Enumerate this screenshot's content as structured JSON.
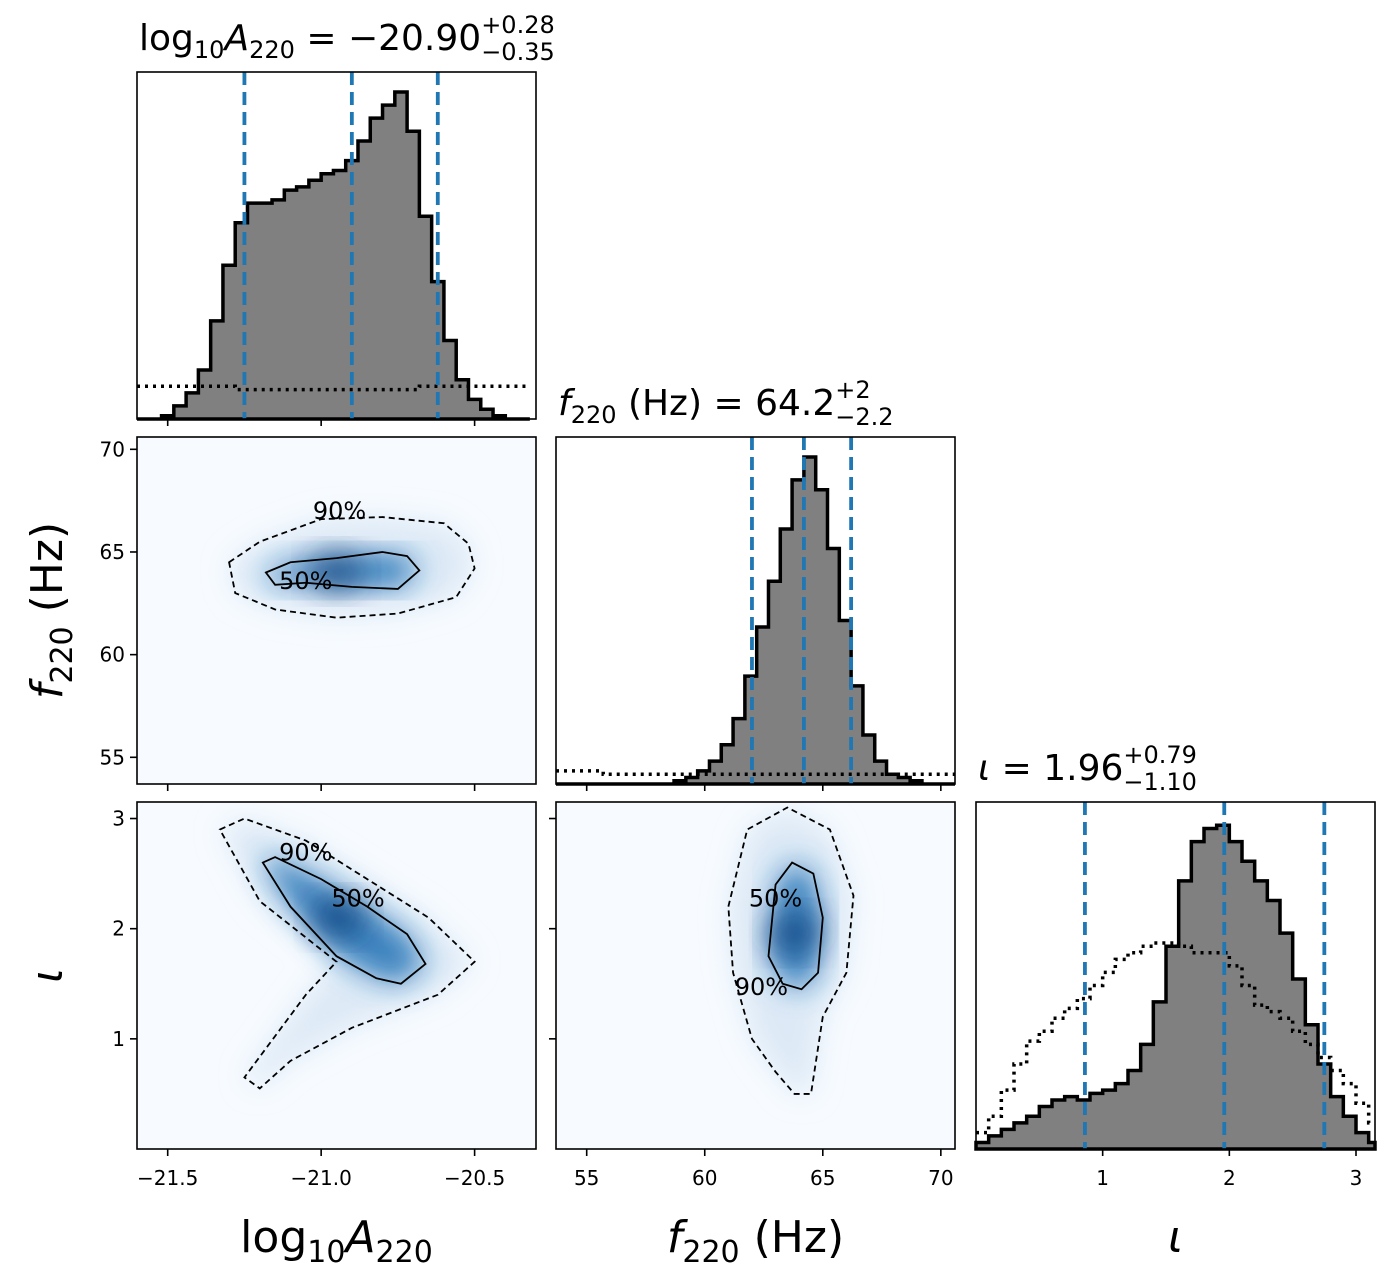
{
  "chart_data": {
    "type": "corner",
    "parameters": [
      {
        "key": "logA",
        "title_base": "log",
        "title_sub": "10",
        "title_symbol": "A",
        "title_symbol_sub": "220",
        "title_mid": " = ",
        "title_value": "−20.90",
        "title_plus": "+0.28",
        "title_minus": "−0.35",
        "label_base": "log",
        "label_sub": "10",
        "label_symbol": "A",
        "label_symbol_sub": "220",
        "range": [
          -21.6,
          -20.3
        ],
        "ticks": [
          -21.5,
          -21.0,
          -20.5
        ],
        "tick_labels": [
          "−21.5",
          "−21.0",
          "−20.5"
        ],
        "quantiles": [
          -21.25,
          -20.9,
          -20.62
        ],
        "hist_x": [
          -21.6,
          -21.56,
          -21.52,
          -21.48,
          -21.44,
          -21.4,
          -21.36,
          -21.32,
          -21.28,
          -21.24,
          -21.2,
          -21.16,
          -21.12,
          -21.08,
          -21.04,
          -21.0,
          -20.96,
          -20.92,
          -20.88,
          -20.84,
          -20.8,
          -20.76,
          -20.72,
          -20.68,
          -20.64,
          -20.6,
          -20.56,
          -20.52,
          -20.48,
          -20.44,
          -20.4,
          -20.36,
          -20.32
        ],
        "hist_y": [
          0.0,
          0.0,
          0.01,
          0.04,
          0.08,
          0.15,
          0.3,
          0.47,
          0.6,
          0.66,
          0.66,
          0.67,
          0.7,
          0.71,
          0.73,
          0.75,
          0.76,
          0.79,
          0.85,
          0.92,
          0.96,
          1.0,
          0.88,
          0.62,
          0.42,
          0.24,
          0.12,
          0.06,
          0.03,
          0.01,
          0.0,
          0.0
        ],
        "prior_y": [
          0.1,
          0.1,
          0.1,
          0.1,
          0.1,
          0.1,
          0.1,
          0.1,
          0.09,
          0.09,
          0.09,
          0.09,
          0.09,
          0.09,
          0.09,
          0.09,
          0.09,
          0.09,
          0.09,
          0.09,
          0.09,
          0.09,
          0.09,
          0.1,
          0.1,
          0.1,
          0.1,
          0.1,
          0.1,
          0.1,
          0.1,
          0.1
        ]
      },
      {
        "key": "f220",
        "title_symbol": "f",
        "title_symbol_sub": "220",
        "title_mid": " (Hz) = ",
        "title_value": "64.2",
        "title_plus": "+2",
        "title_minus": "−2.2",
        "label_symbol": "f",
        "label_symbol_sub": "220",
        "label_unit": " (Hz)",
        "range": [
          53.7,
          70.6
        ],
        "ticks": [
          55,
          60,
          65,
          70
        ],
        "tick_labels": [
          "55",
          "60",
          "65",
          "70"
        ],
        "quantiles": [
          62.0,
          64.2,
          66.2
        ],
        "hist_x": [
          53.7,
          54.2,
          54.7,
          55.2,
          55.7,
          56.2,
          56.7,
          57.2,
          57.7,
          58.2,
          58.7,
          59.2,
          59.7,
          60.2,
          60.7,
          61.2,
          61.7,
          62.2,
          62.7,
          63.2,
          63.7,
          64.2,
          64.7,
          65.2,
          65.7,
          66.2,
          66.7,
          67.2,
          67.7,
          68.2,
          68.7,
          69.2,
          69.7,
          70.2,
          70.6
        ],
        "hist_y": [
          0.0,
          0.0,
          0.0,
          0.0,
          0.0,
          0.0,
          0.0,
          0.0,
          0.0,
          0.0,
          0.01,
          0.02,
          0.04,
          0.07,
          0.12,
          0.2,
          0.33,
          0.48,
          0.62,
          0.78,
          0.93,
          1.0,
          0.9,
          0.72,
          0.5,
          0.3,
          0.15,
          0.07,
          0.03,
          0.02,
          0.01,
          0.0,
          0.0,
          0.0
        ],
        "prior_y": [
          0.04,
          0.04,
          0.04,
          0.04,
          0.03,
          0.03,
          0.03,
          0.03,
          0.03,
          0.03,
          0.03,
          0.03,
          0.03,
          0.03,
          0.03,
          0.03,
          0.03,
          0.03,
          0.03,
          0.03,
          0.03,
          0.03,
          0.03,
          0.03,
          0.03,
          0.03,
          0.03,
          0.03,
          0.03,
          0.03,
          0.03,
          0.03,
          0.03,
          0.03
        ]
      },
      {
        "key": "iota",
        "title_symbol": "ι",
        "title_mid": " = ",
        "title_value": "1.96",
        "title_plus": "+0.79",
        "title_minus": "−1.10",
        "label_symbol": "ι",
        "range": [
          0.0,
          3.15
        ],
        "ticks": [
          1,
          2,
          3
        ],
        "tick_labels": [
          "1",
          "2",
          "3"
        ],
        "quantiles": [
          0.86,
          1.96,
          2.75
        ],
        "hist_x": [
          0.0,
          0.1,
          0.2,
          0.3,
          0.4,
          0.5,
          0.6,
          0.7,
          0.8,
          0.9,
          1.0,
          1.1,
          1.2,
          1.3,
          1.4,
          1.5,
          1.6,
          1.7,
          1.8,
          1.9,
          2.0,
          2.1,
          2.2,
          2.3,
          2.4,
          2.5,
          2.6,
          2.7,
          2.8,
          2.9,
          3.0,
          3.1,
          3.15
        ],
        "hist_y": [
          0.02,
          0.04,
          0.06,
          0.08,
          0.1,
          0.13,
          0.15,
          0.16,
          0.15,
          0.17,
          0.18,
          0.2,
          0.24,
          0.32,
          0.45,
          0.62,
          0.82,
          0.94,
          0.98,
          0.99,
          0.94,
          0.88,
          0.82,
          0.76,
          0.66,
          0.52,
          0.38,
          0.26,
          0.16,
          0.1,
          0.05,
          0.02
        ],
        "prior_y": [
          0.05,
          0.1,
          0.18,
          0.26,
          0.33,
          0.36,
          0.4,
          0.43,
          0.46,
          0.5,
          0.54,
          0.58,
          0.6,
          0.62,
          0.63,
          0.63,
          0.62,
          0.6,
          0.6,
          0.6,
          0.56,
          0.5,
          0.44,
          0.42,
          0.4,
          0.36,
          0.32,
          0.28,
          0.24,
          0.2,
          0.14,
          0.08
        ]
      }
    ],
    "density_2d": [
      {
        "x": "logA",
        "y": "f220",
        "y_ticks": [
          55,
          60,
          65,
          70
        ],
        "y_tick_labels": [
          "55",
          "60",
          "65",
          "70"
        ],
        "contour_50": [
          [
            -21.18,
            64.0
          ],
          [
            -21.1,
            64.5
          ],
          [
            -20.95,
            64.7
          ],
          [
            -20.8,
            65.0
          ],
          [
            -20.72,
            64.8
          ],
          [
            -20.68,
            64.1
          ],
          [
            -20.75,
            63.2
          ],
          [
            -20.9,
            63.3
          ],
          [
            -21.05,
            63.5
          ],
          [
            -21.15,
            63.4
          ],
          [
            -21.18,
            64.0
          ]
        ],
        "contour_90": [
          [
            -21.3,
            64.5
          ],
          [
            -21.2,
            65.5
          ],
          [
            -21.0,
            66.6
          ],
          [
            -20.8,
            66.7
          ],
          [
            -20.6,
            66.4
          ],
          [
            -20.52,
            65.4
          ],
          [
            -20.5,
            64.2
          ],
          [
            -20.56,
            62.8
          ],
          [
            -20.75,
            62.0
          ],
          [
            -20.95,
            61.8
          ],
          [
            -21.15,
            62.2
          ],
          [
            -21.28,
            63.0
          ],
          [
            -21.3,
            64.5
          ]
        ],
        "label_90": "90%",
        "label_50": "50%",
        "label_90_pos": [
          -20.94,
          66.6
        ],
        "label_50_pos": [
          -21.05,
          63.2
        ]
      },
      {
        "x": "logA",
        "y": "iota",
        "y_ticks": [
          1,
          2,
          3
        ],
        "y_tick_labels": [
          "1",
          "2",
          "3"
        ],
        "contour_50": [
          [
            -21.19,
            2.6
          ],
          [
            -21.15,
            2.65
          ],
          [
            -21.0,
            2.45
          ],
          [
            -20.85,
            2.2
          ],
          [
            -20.72,
            1.95
          ],
          [
            -20.66,
            1.68
          ],
          [
            -20.74,
            1.5
          ],
          [
            -20.82,
            1.55
          ],
          [
            -20.95,
            1.75
          ],
          [
            -21.1,
            2.2
          ],
          [
            -21.19,
            2.6
          ]
        ],
        "contour_90": [
          [
            -21.33,
            2.9
          ],
          [
            -21.25,
            3.0
          ],
          [
            -21.05,
            2.8
          ],
          [
            -20.85,
            2.45
          ],
          [
            -20.65,
            2.1
          ],
          [
            -20.5,
            1.7
          ],
          [
            -20.62,
            1.4
          ],
          [
            -20.9,
            1.1
          ],
          [
            -21.1,
            0.8
          ],
          [
            -21.2,
            0.55
          ],
          [
            -21.25,
            0.65
          ],
          [
            -21.05,
            1.4
          ],
          [
            -20.95,
            1.7
          ],
          [
            -21.2,
            2.25
          ],
          [
            -21.33,
            2.9
          ]
        ],
        "label_90": "90%",
        "label_50": "50%",
        "label_90_pos": [
          -21.05,
          2.62
        ],
        "label_50_pos": [
          -20.88,
          2.2
        ]
      },
      {
        "x": "f220",
        "y": "iota",
        "y_ticks": [
          1,
          2,
          3
        ],
        "y_tick_labels": [
          "1",
          "2",
          "3"
        ],
        "contour_50": [
          [
            62.7,
            1.75
          ],
          [
            63.0,
            2.4
          ],
          [
            63.7,
            2.6
          ],
          [
            64.6,
            2.5
          ],
          [
            65.0,
            2.1
          ],
          [
            64.8,
            1.6
          ],
          [
            64.1,
            1.45
          ],
          [
            63.3,
            1.5
          ],
          [
            62.7,
            1.75
          ]
        ],
        "contour_90": [
          [
            61.0,
            2.2
          ],
          [
            61.8,
            2.9
          ],
          [
            63.5,
            3.1
          ],
          [
            65.3,
            2.9
          ],
          [
            66.3,
            2.3
          ],
          [
            66.0,
            1.6
          ],
          [
            65.0,
            1.2
          ],
          [
            64.5,
            0.5
          ],
          [
            63.8,
            0.5
          ],
          [
            63.0,
            0.7
          ],
          [
            62.0,
            1.0
          ],
          [
            61.2,
            1.6
          ],
          [
            61.0,
            2.2
          ]
        ],
        "label_90": "90%",
        "label_50": "50%",
        "label_90_pos": [
          62.4,
          1.4
        ],
        "label_50_pos": [
          63.0,
          2.2
        ]
      }
    ],
    "colors": {
      "hist_fill": "#808080",
      "hist_edge": "#000000",
      "quantile": "#1f77b4",
      "density_low": "#f7fbff",
      "density_high": "#08306b"
    }
  }
}
